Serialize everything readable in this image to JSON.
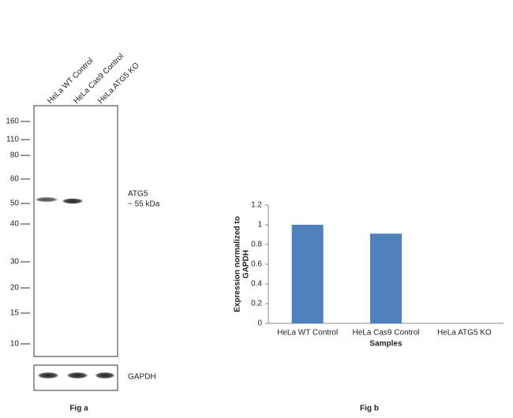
{
  "blot": {
    "lanes": [
      "HeLa WT Control",
      "HeLa Cas9 Control",
      "HeLa ATG5 KO"
    ],
    "markers": [
      160,
      110,
      80,
      60,
      50,
      40,
      30,
      20,
      15,
      10
    ],
    "target": "ATG5",
    "target_size": "~ 55 kDa",
    "loading_control": "GAPDH",
    "caption": "Fig a"
  },
  "chart_data": {
    "type": "bar",
    "categories": [
      "HeLa WT Control",
      "HeLa Cas9 Control",
      "HeLa ATG5 KO"
    ],
    "values": [
      1,
      0.91,
      0
    ],
    "color": "#4f81bd",
    "ylim": [
      0,
      1.2
    ],
    "yticks": [
      0,
      0.2,
      0.4,
      0.6,
      0.8,
      1,
      1.2
    ],
    "ylabel": [
      "Expression  normalized to",
      "GAPDH"
    ],
    "xlabel": "Samples",
    "grid": false,
    "caption": "Fig b"
  }
}
